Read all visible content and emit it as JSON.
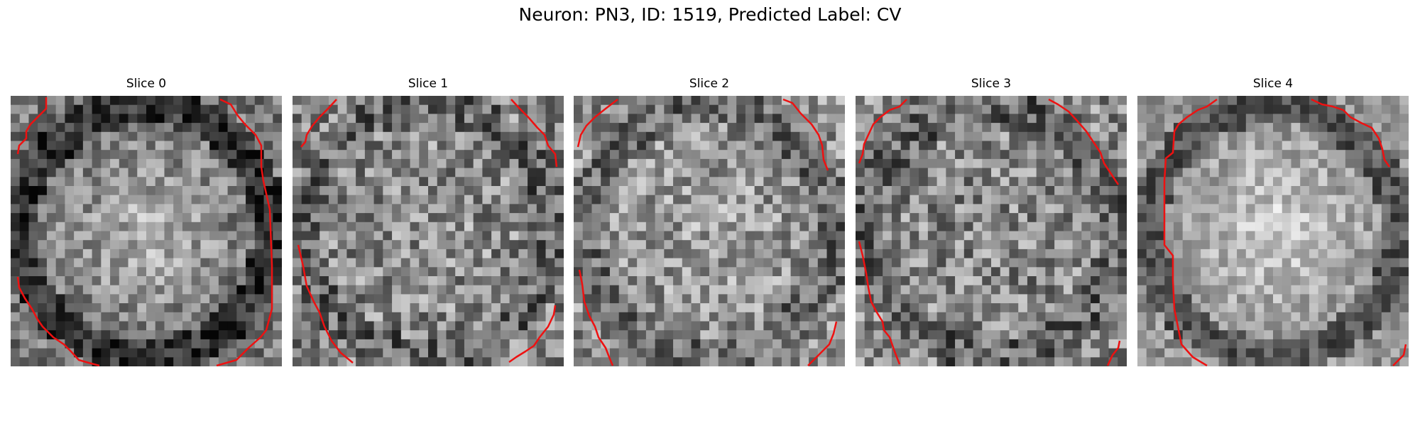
{
  "figure": {
    "title": "Neuron: PN3, ID: 1519, Predicted Label: CV"
  },
  "panels": [
    {
      "title": "Slice 0"
    },
    {
      "title": "Slice 1"
    },
    {
      "title": "Slice 2"
    },
    {
      "title": "Slice 3"
    },
    {
      "title": "Slice 4"
    }
  ],
  "colors": {
    "contour": "#ee1111",
    "background": "#ffffff"
  },
  "image_grid": {
    "columns": 30,
    "rows": 30,
    "colormap": "gray"
  }
}
